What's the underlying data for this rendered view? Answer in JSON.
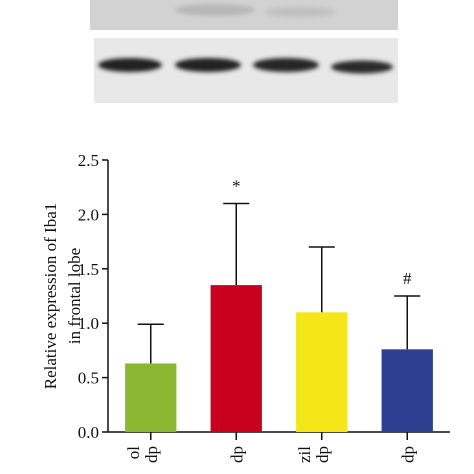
{
  "chart_data": {
    "type": "bar",
    "y_label": [
      "Relative expression of Iba1",
      "in frontal lobe"
    ],
    "categories": [
      "ol",
      null,
      "zil",
      null
    ],
    "category_sublabels": [
      "dp",
      "dp",
      "dp",
      "dp"
    ],
    "values": [
      0.63,
      1.35,
      1.1,
      0.76
    ],
    "errors": [
      0.36,
      0.75,
      0.6,
      0.49
    ],
    "colors": [
      "#8ab833",
      "#c8001e",
      "#f5e61a",
      "#2e3f92"
    ],
    "annotations": [
      null,
      "*",
      null,
      "#"
    ],
    "ylim": [
      0,
      2.5
    ],
    "yticks": [
      {
        "value": 0,
        "label": "0.0"
      },
      0.5,
      {
        "value": 1,
        "label": "1.0"
      },
      1.5,
      {
        "value": 2,
        "label": "2.0"
      },
      2.5
    ]
  }
}
